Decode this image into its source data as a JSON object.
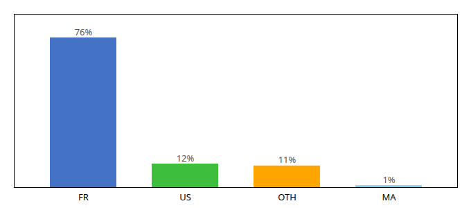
{
  "chart_data": {
    "type": "bar",
    "categories": [
      "FR",
      "US",
      "OTH",
      "MA"
    ],
    "values": [
      76,
      12,
      11,
      1
    ],
    "value_labels": [
      "76%",
      "12%",
      "11%",
      "1%"
    ],
    "colors": [
      "#4472C4",
      "#3DBF3D",
      "#FFA500",
      "#87CEEB"
    ],
    "ylim": [
      0,
      88
    ],
    "data_labels": true,
    "tick_labels": "x",
    "grid": false
  }
}
